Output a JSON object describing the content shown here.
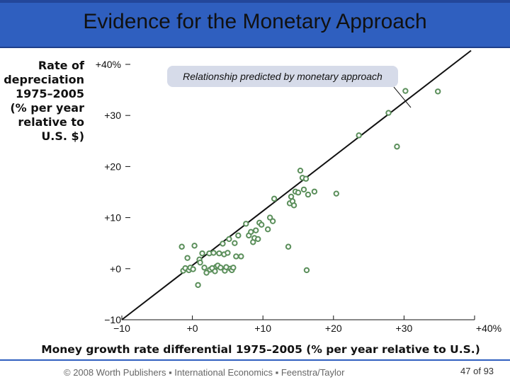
{
  "slide": {
    "title": "Evidence for the Monetary Approach",
    "footer": "© 2008 Worth Publishers ▪ International Economics ▪ Feenstra/Taylor",
    "page_number": "47",
    "page_of": "of",
    "page_total": "93"
  },
  "colors": {
    "title_bar": "#2f5fbf",
    "marker": "#5b8f5b",
    "annotation_box": "#d6dbe9",
    "line": "#111111"
  },
  "chart_data": {
    "type": "scatter",
    "ylabel_lines": [
      "Rate of",
      "depreciation",
      "1975–2005",
      "(% per year",
      "relative to",
      "U.S. $)"
    ],
    "xlabel": "Money growth rate differential 1975–2005 (% per year relative to U.S.)",
    "annotation": "Relationship predicted by monetary approach",
    "xlim": [
      -10,
      40
    ],
    "ylim": [
      -10,
      40
    ],
    "x_ticks": [
      -10,
      0,
      10,
      20,
      30,
      40
    ],
    "y_ticks": [
      -10,
      0,
      10,
      20,
      30,
      40
    ],
    "x_tick_labels": [
      "−10",
      "+0",
      "+10",
      "+20",
      "+30",
      "+40%"
    ],
    "y_tick_labels": [
      "−10",
      "+0",
      "+10",
      "+20",
      "+30",
      "+40%"
    ],
    "reference_line": {
      "from": [
        -10,
        -10
      ],
      "to": [
        40,
        40
      ]
    },
    "points": [
      [
        -1.5,
        4.3
      ],
      [
        -1.3,
        -0.4
      ],
      [
        -1.0,
        0.1
      ],
      [
        -0.7,
        2.1
      ],
      [
        -0.5,
        -0.3
      ],
      [
        -0.3,
        0.2
      ],
      [
        0.1,
        -0.1
      ],
      [
        0.3,
        4.5
      ],
      [
        0.8,
        -3.2
      ],
      [
        1.0,
        1.8
      ],
      [
        1.1,
        1.2
      ],
      [
        1.4,
        3.0
      ],
      [
        1.7,
        0.2
      ],
      [
        2.0,
        -0.8
      ],
      [
        2.4,
        3.0
      ],
      [
        2.5,
        -0.2
      ],
      [
        2.8,
        0.1
      ],
      [
        3.0,
        3.1
      ],
      [
        3.2,
        -0.5
      ],
      [
        3.4,
        0.4
      ],
      [
        3.6,
        0.6
      ],
      [
        3.8,
        3.0
      ],
      [
        4.0,
        0.2
      ],
      [
        4.3,
        4.9
      ],
      [
        4.5,
        2.8
      ],
      [
        4.6,
        -0.4
      ],
      [
        4.8,
        0.3
      ],
      [
        5.0,
        3.1
      ],
      [
        5.2,
        5.8
      ],
      [
        5.4,
        0.0
      ],
      [
        5.6,
        -0.3
      ],
      [
        5.8,
        0.2
      ],
      [
        6.0,
        5.0
      ],
      [
        6.2,
        2.4
      ],
      [
        6.5,
        6.5
      ],
      [
        6.9,
        2.4
      ],
      [
        7.6,
        8.8
      ],
      [
        8.0,
        6.5
      ],
      [
        8.3,
        7.2
      ],
      [
        8.6,
        5.2
      ],
      [
        8.8,
        6.0
      ],
      [
        9.0,
        7.5
      ],
      [
        9.3,
        5.8
      ],
      [
        9.5,
        9.0
      ],
      [
        9.8,
        8.6
      ],
      [
        10.7,
        7.7
      ],
      [
        11.0,
        10.0
      ],
      [
        11.4,
        9.3
      ],
      [
        11.6,
        13.7
      ],
      [
        13.6,
        4.3
      ],
      [
        13.8,
        12.8
      ],
      [
        14.0,
        14.1
      ],
      [
        14.2,
        13.2
      ],
      [
        14.4,
        12.4
      ],
      [
        14.6,
        15.1
      ],
      [
        15.0,
        14.9
      ],
      [
        15.3,
        19.2
      ],
      [
        15.6,
        17.8
      ],
      [
        15.8,
        15.5
      ],
      [
        16.1,
        17.6
      ],
      [
        16.2,
        -0.3
      ],
      [
        16.4,
        14.5
      ],
      [
        17.3,
        15.1
      ],
      [
        20.4,
        14.7
      ],
      [
        23.6,
        26.1
      ],
      [
        27.8,
        30.5
      ],
      [
        29.0,
        23.9
      ],
      [
        30.2,
        34.8
      ],
      [
        34.8,
        34.7
      ]
    ]
  }
}
